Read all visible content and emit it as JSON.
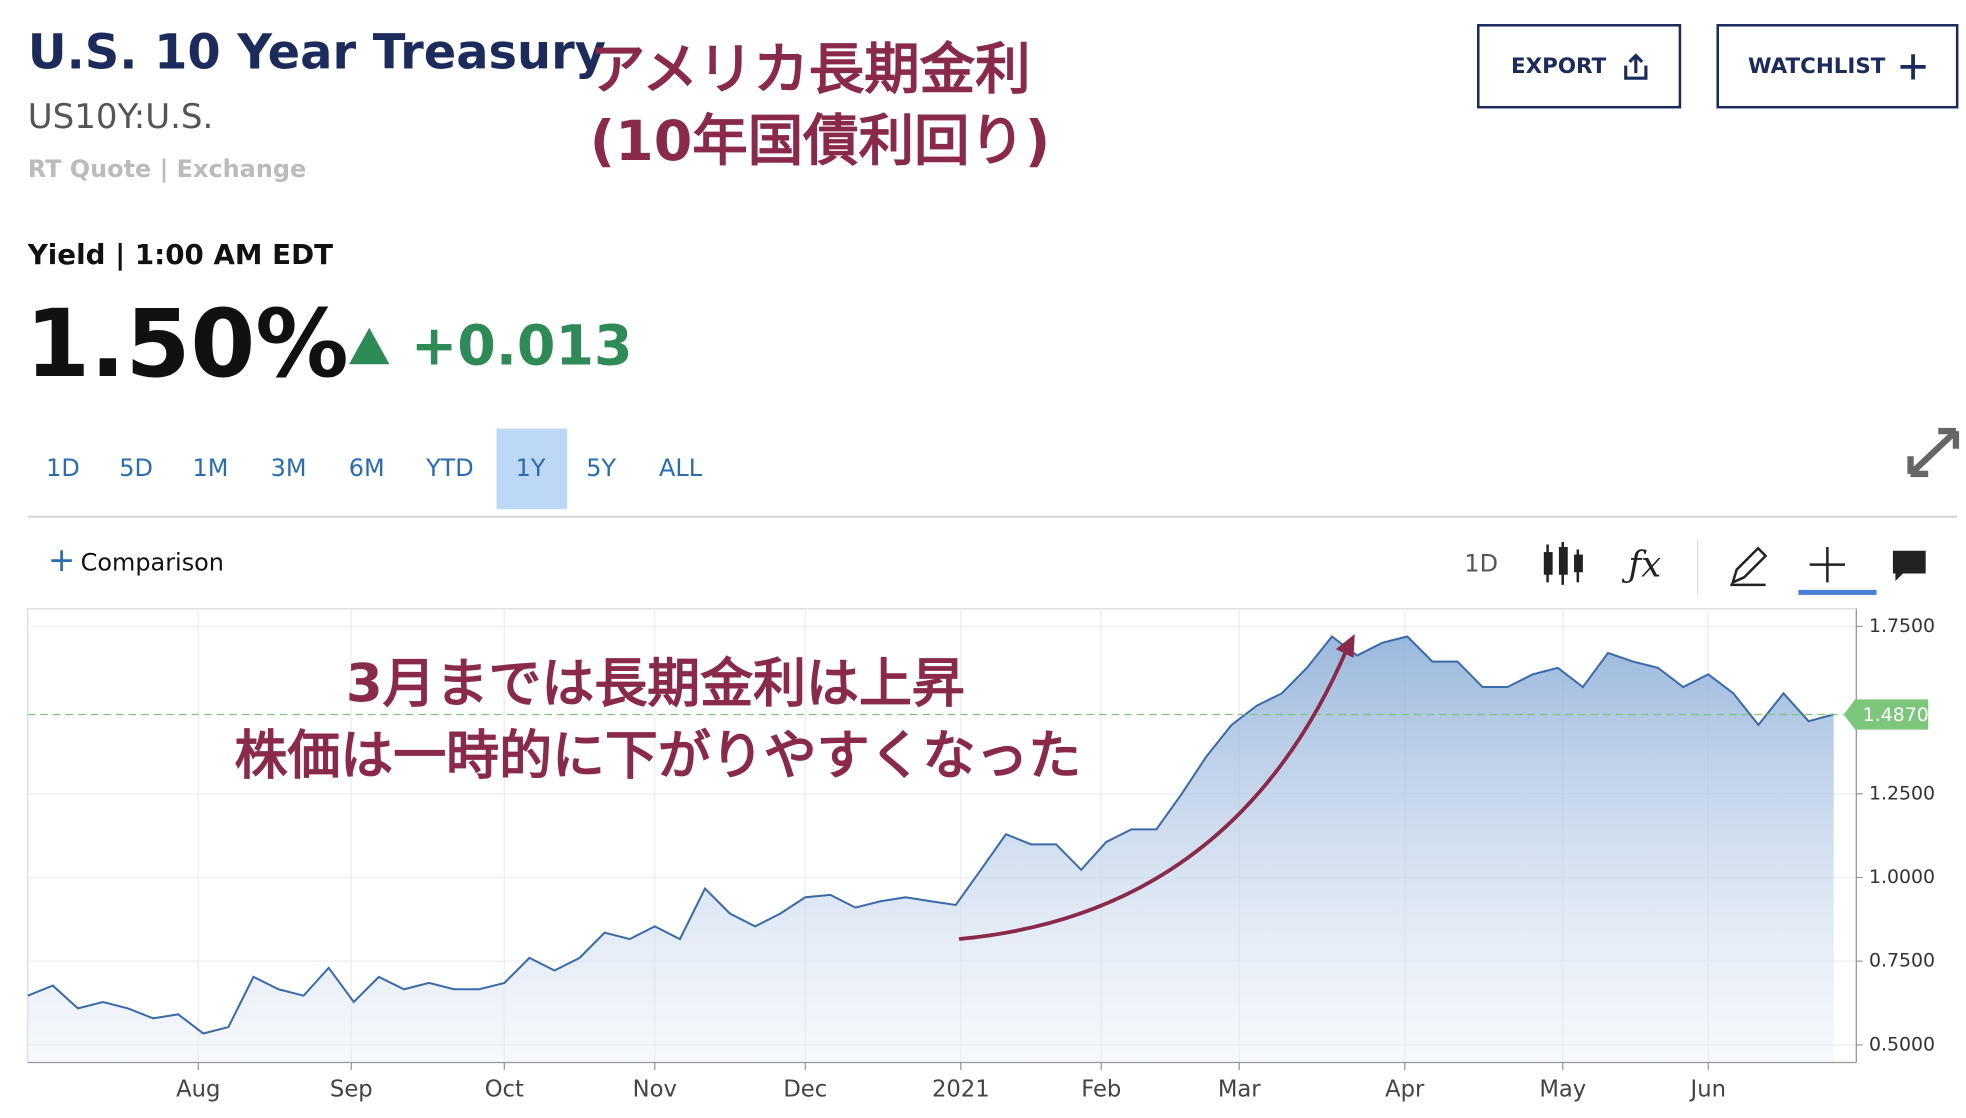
{
  "header": {
    "title": "U.S. 10 Year Treasury",
    "symbol": "US10Y:U.S.",
    "quote_source": "RT Quote | Exchange",
    "annotation": [
      "アメリカ長期金利",
      "(10年国債利回り)"
    ]
  },
  "buttons": [
    "EXPORT",
    "WATCHLIST"
  ],
  "quote": {
    "label": "Yield | 1:00 AM EDT",
    "price": "1.50%",
    "change": "+0.013"
  },
  "tabs": {
    "items": [
      "1D",
      "5D",
      "1M",
      "3M",
      "6M",
      "YTD",
      "1Y",
      "5Y",
      "ALL"
    ],
    "selected": "1Y"
  },
  "toolbar": {
    "comparison": "Comparison",
    "interval": "1D"
  },
  "chart_data": {
    "type": "area",
    "annotations": [
      "3月までは長期金利は上昇",
      "株価は一時的に下がりやすくなった"
    ],
    "values": [
      0.647,
      0.677,
      0.609,
      0.628,
      0.609,
      0.579,
      0.591,
      0.534,
      0.553,
      0.703,
      0.666,
      0.647,
      0.73,
      0.628,
      0.703,
      0.666,
      0.685,
      0.666,
      0.666,
      0.685,
      0.76,
      0.722,
      0.76,
      0.835,
      0.816,
      0.854,
      0.816,
      0.967,
      0.892,
      0.854,
      0.892,
      0.941,
      0.948,
      0.91,
      0.929,
      0.941,
      0.929,
      0.918,
      1.023,
      1.129,
      1.099,
      1.099,
      1.023,
      1.106,
      1.144,
      1.144,
      1.249,
      1.362,
      1.456,
      1.513,
      1.55,
      1.626,
      1.72,
      1.663,
      1.701,
      1.72,
      1.645,
      1.645,
      1.569,
      1.569,
      1.607,
      1.626,
      1.569,
      1.671,
      1.645,
      1.626,
      1.569,
      1.607,
      1.55,
      1.456,
      1.55,
      1.467,
      1.487
    ],
    "color": "#3a6aa8",
    "xlim": [
      0,
      72
    ],
    "xticks": [
      {
        "value": 6.8,
        "label": "Aug"
      },
      {
        "value": 12.9,
        "label": "Sep"
      },
      {
        "value": 19,
        "label": "Oct"
      },
      {
        "value": 25,
        "label": "Nov"
      },
      {
        "value": 31,
        "label": "Dec"
      },
      {
        "value": 37.2,
        "label": "2021"
      },
      {
        "value": 42.8,
        "label": "Feb"
      },
      {
        "value": 48.3,
        "label": "Mar"
      },
      {
        "value": 54.9,
        "label": "Apr"
      },
      {
        "value": 61.2,
        "label": "May"
      },
      {
        "value": 67,
        "label": "Jun"
      }
    ],
    "ylim": [
      0.45,
      1.8
    ],
    "yticks": [
      {
        "value": 0.5,
        "label": "0.5000"
      },
      {
        "value": 0.75,
        "label": "0.7500"
      },
      {
        "value": 1,
        "label": "1.0000"
      },
      {
        "value": 1.25,
        "label": "1.2500"
      },
      {
        "value": 1.75,
        "label": "1.7500"
      }
    ],
    "last_value": {
      "value": 1.487,
      "label": "1.4870"
    },
    "grid": true
  }
}
